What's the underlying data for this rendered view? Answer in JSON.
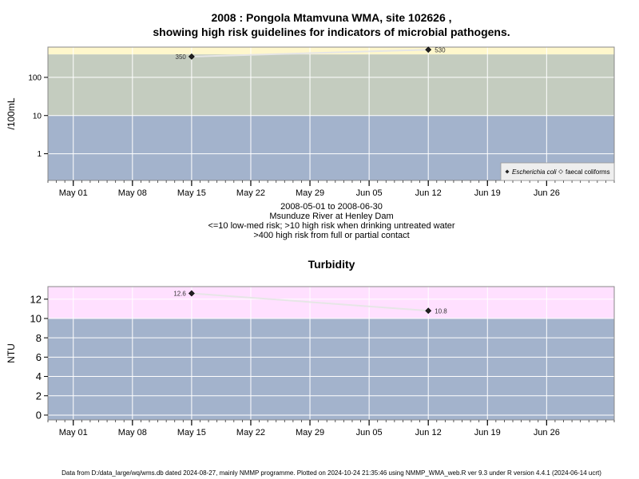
{
  "top_chart": {
    "title_line1": "2008 : Pongola Mtamvuna WMA, site 102626 ,",
    "title_line2": "showing high risk guidelines for indicators of microbial pathogens.",
    "caption_lines": [
      "2008-05-01 to 2008-06-30",
      "Msunduze River at Henley Dam",
      "<=10 low-med risk; >10 high risk when drinking untreated water",
      ">400 high risk from full or partial contact"
    ]
  },
  "bottom_chart": {
    "title": "Turbidity"
  },
  "footer": "Data from D:/data_large/wq/wms.db dated 2024-08-27, mainly NMMP programme. Plotted on 2024-10-24 21:35:46 using NMMP_WMA_web.R ver 9.3 under R version 4.4.1 (2024-06-14 ucrt)",
  "chart_data": [
    {
      "type": "line",
      "scale": "log",
      "ylabel": "/100mL",
      "xlim": [
        "2008-04-28",
        "2008-07-04"
      ],
      "ylim": [
        0.2,
        620
      ],
      "x_ticks": [
        {
          "date": "2008-05-01",
          "label": "May 01"
        },
        {
          "date": "2008-05-08",
          "label": "May 08"
        },
        {
          "date": "2008-05-15",
          "label": "May 15"
        },
        {
          "date": "2008-05-22",
          "label": "May 22"
        },
        {
          "date": "2008-05-29",
          "label": "May 29"
        },
        {
          "date": "2008-06-05",
          "label": "Jun 05"
        },
        {
          "date": "2008-06-12",
          "label": "Jun 12"
        },
        {
          "date": "2008-06-19",
          "label": "Jun 19"
        },
        {
          "date": "2008-06-26",
          "label": "Jun 26"
        }
      ],
      "y_ticks": [
        {
          "value": 1,
          "label": "1"
        },
        {
          "value": 10,
          "label": "10"
        },
        {
          "value": 100,
          "label": "100"
        }
      ],
      "bands": [
        {
          "from": 0.2,
          "to": 10,
          "color": "#a3b3cc"
        },
        {
          "from": 10,
          "to": 400,
          "color": "#c4ccbf"
        },
        {
          "from": 400,
          "to": 620,
          "color": "#fff7cc"
        }
      ],
      "grid": true,
      "legend": {
        "position": "bottom-right",
        "entries": [
          {
            "label": "Escherichia coli",
            "marker": "filled-diamond",
            "italic": true
          },
          {
            "label": "faecal coliforms",
            "marker": "open-diamond",
            "italic": false
          }
        ]
      },
      "series": [
        {
          "name": "Escherichia coli",
          "points": [
            {
              "x": "2008-05-15",
              "y": 350,
              "label": "350"
            },
            {
              "x": "2008-06-12",
              "y": 530,
              "label": "530"
            }
          ]
        }
      ]
    },
    {
      "type": "line",
      "title": "Turbidity",
      "ylabel": "NTU",
      "xlim": [
        "2008-04-28",
        "2008-07-04"
      ],
      "ylim": [
        -0.5,
        13.3
      ],
      "x_ticks": [
        {
          "date": "2008-05-01",
          "label": "May 01"
        },
        {
          "date": "2008-05-08",
          "label": "May 08"
        },
        {
          "date": "2008-05-15",
          "label": "May 15"
        },
        {
          "date": "2008-05-22",
          "label": "May 22"
        },
        {
          "date": "2008-05-29",
          "label": "May 29"
        },
        {
          "date": "2008-06-05",
          "label": "Jun 05"
        },
        {
          "date": "2008-06-12",
          "label": "Jun 12"
        },
        {
          "date": "2008-06-19",
          "label": "Jun 19"
        },
        {
          "date": "2008-06-26",
          "label": "Jun 26"
        }
      ],
      "y_ticks": [
        {
          "value": 0,
          "label": "0"
        },
        {
          "value": 2,
          "label": "2"
        },
        {
          "value": 4,
          "label": "4"
        },
        {
          "value": 6,
          "label": "6"
        },
        {
          "value": 8,
          "label": "8"
        },
        {
          "value": 10,
          "label": "10"
        },
        {
          "value": 12,
          "label": "12"
        }
      ],
      "bands": [
        {
          "from": -0.5,
          "to": 10,
          "color": "#a3b3cc"
        },
        {
          "from": 10,
          "to": 13.3,
          "color": "#ffe0ff"
        }
      ],
      "grid": true,
      "series": [
        {
          "name": "",
          "points": [
            {
              "x": "2008-05-15",
              "y": 12.6,
              "label": "12.6"
            },
            {
              "x": "2008-06-12",
              "y": 10.8,
              "label": "10.8"
            }
          ]
        }
      ]
    }
  ]
}
